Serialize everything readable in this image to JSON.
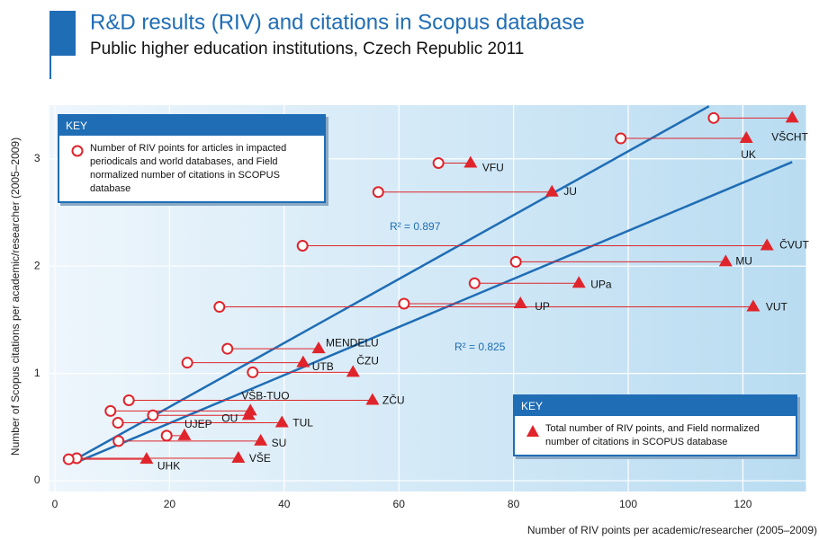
{
  "title": "R&D results (RIV) and citations in Scopus database",
  "subtitle": "Public higher education institutions, Czech Republic 2011",
  "chart_data": {
    "type": "scatter",
    "x_label": "Number of RIV points per academic/researcher (2005–2009)",
    "y_label": "Number of Scopus citations per academic/researcher (2005–2009)",
    "xlim": [
      -1,
      131
    ],
    "ylim": [
      -0.1,
      3.5
    ],
    "xticks": [
      0,
      20,
      40,
      60,
      80,
      100,
      120
    ],
    "yticks": [
      0,
      1,
      2,
      3
    ],
    "grid": true,
    "legend_titles": [
      "KEY",
      "KEY"
    ],
    "labels": [
      "VŠCHT",
      "UK",
      "VFU",
      "JU",
      "ČVUT",
      "MU",
      "UPa",
      "UP",
      "VUT",
      "MENDELU",
      "UTB",
      "ČZU",
      "ZČU",
      "VŠB-TUO",
      "OU",
      "TUL",
      "UJEP",
      "SU",
      "VŠE",
      "UHK"
    ],
    "series": [
      {
        "name": "Number of RIV points for articles in impacted periodicals and world databases, and Field normalized number of citations in SCOPUS database",
        "marker": "circle",
        "color": "#e0242b",
        "x": [
          114.9,
          98.7,
          66.9,
          56.4,
          43.2,
          80.4,
          73.2,
          60.9,
          28.7,
          30.1,
          23.1,
          34.5,
          12.9,
          9.7,
          17.1,
          11.0,
          19.5,
          11.1,
          3.8,
          2.4
        ],
        "values": [
          3.38,
          3.19,
          2.96,
          2.69,
          2.19,
          2.04,
          1.84,
          1.65,
          1.62,
          1.23,
          1.1,
          1.01,
          0.75,
          0.65,
          0.61,
          0.54,
          0.42,
          0.37,
          0.21,
          0.2
        ]
      },
      {
        "name": "Total number of RIV points, and Field normalized number of citations in SCOPUS database",
        "marker": "triangle",
        "color": "#e0242b",
        "x": [
          128.6,
          120.6,
          72.5,
          86.7,
          124.2,
          117.0,
          91.4,
          81.2,
          121.8,
          46.0,
          43.3,
          52.0,
          55.4,
          34.1,
          33.8,
          39.6,
          22.6,
          35.9,
          32.0,
          16.0
        ],
        "values": [
          3.38,
          3.19,
          2.96,
          2.69,
          2.19,
          2.04,
          1.84,
          1.65,
          1.62,
          1.23,
          1.1,
          1.01,
          0.75,
          0.65,
          0.61,
          0.54,
          0.42,
          0.37,
          0.21,
          0.2
        ]
      }
    ],
    "trendlines": [
      {
        "x": [
          3.6,
          114.1
        ],
        "values": [
          0.2,
          3.49
        ],
        "label": "R² = 0.897",
        "color": "#1f6db5"
      },
      {
        "x": [
          4.1,
          128.6
        ],
        "values": [
          0.18,
          2.97
        ],
        "label": "R² = 0.825",
        "color": "#1f6db5"
      }
    ]
  }
}
